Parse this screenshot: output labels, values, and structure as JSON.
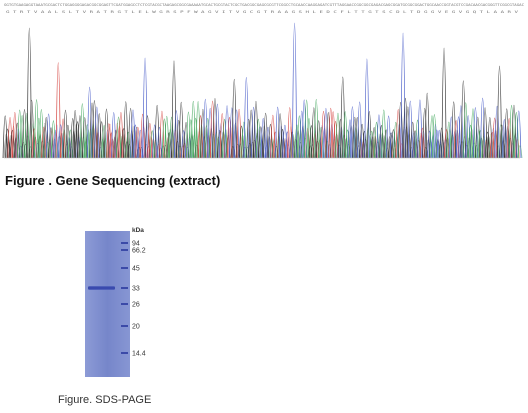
{
  "figure_title": "Figure . Gene Sequencing (extract)",
  "chromatogram": {
    "base_colors": {
      "A": "#2e9e4b",
      "C": "#3a4fc4",
      "G": "#222222",
      "T": "#d1342f"
    },
    "bases": "GGTGTGAAGAGGTAAATGCGACTCTGGAGGGGAGACGGCGGAGTTCGATGGAGCCTCTCGTACGCTAAGAGCGGCGAAAAATGCACTGCGTACTCGCTGACGGCGAGCGCGTTCGGCCTGCAACCAAGGAGATCGTTTAGGAACCGGCGGCGAGACGAGCGGATGCGGCGGACTGGCAACCGGTACGTCCGACAACGACGGGTTCGGCGTAGAC",
    "translation": "G T R T V A A L S L T V R A T R G T L E L W G R S P F W A G V I T V G C G T R A A G S H L E D C F L T T G T S C D L T D G G V E G V G Q T L A A R V"
  },
  "gel": {
    "unit": "kDa",
    "markers": [
      "94",
      "66.2",
      "45",
      "33",
      "26",
      "20",
      "14.4"
    ],
    "lane_color": "#6f7fc6",
    "band_color": "#2f3fa8"
  },
  "gel_caption": "Figure. SDS-PAGE"
}
